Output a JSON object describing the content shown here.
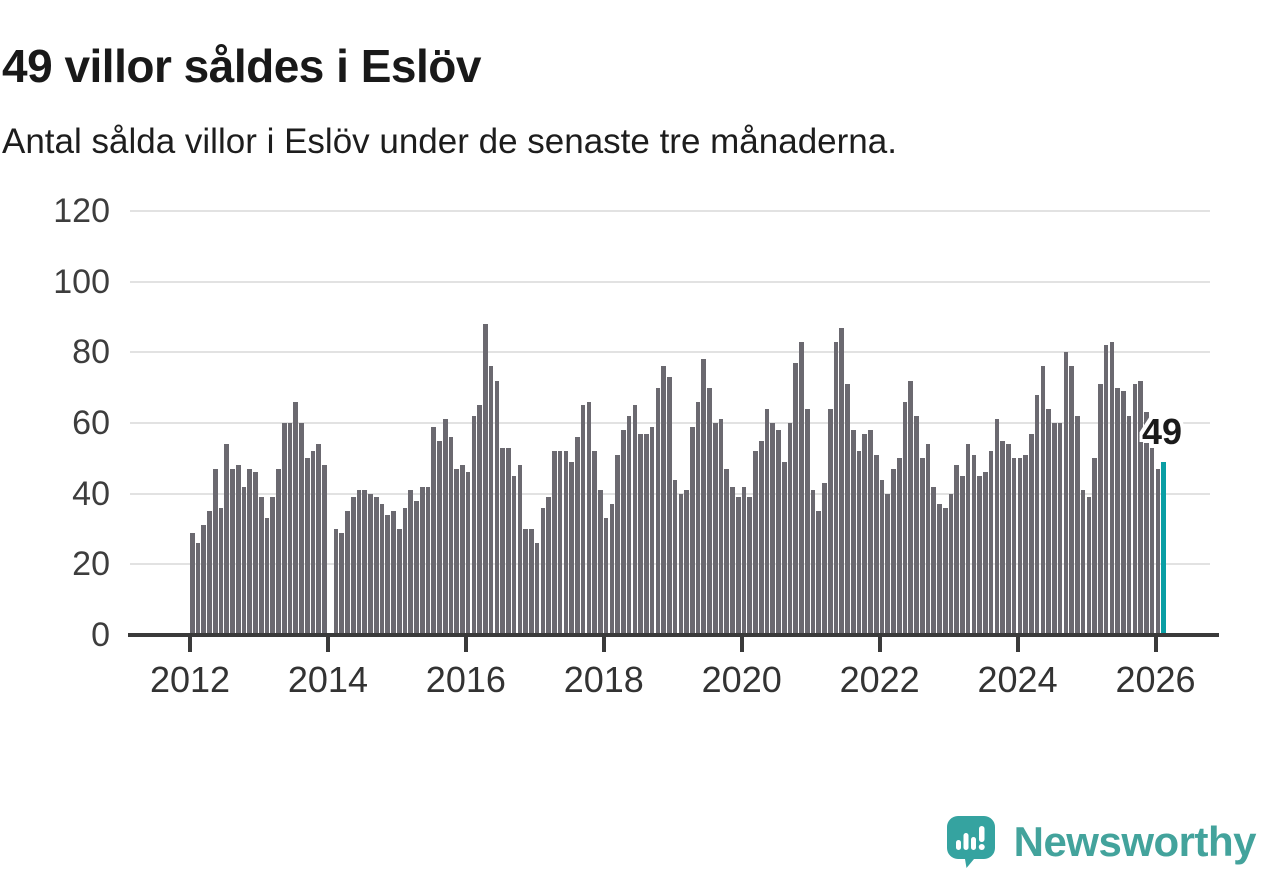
{
  "title": "49 villor såldes i Eslöv",
  "subtitle": "Antal sålda villor i Eslöv under de senaste tre månaderna.",
  "annotation": {
    "label": "49"
  },
  "branding": {
    "wordmark": "Newsworthy"
  },
  "colors": {
    "bar": "#6b6970",
    "highlight": "#0a9ea4",
    "grid": "#e2e2e2",
    "axis": "#3a3a3a",
    "text": "#191919",
    "brand_teal": "#43a39c"
  },
  "chart_data": {
    "type": "bar",
    "title": "49 villor såldes i Eslöv",
    "subtitle": "Antal sålda villor i Eslöv under de senaste tre månaderna.",
    "xlabel": "",
    "ylabel": "",
    "frequency": "monthly",
    "x_start": "2012-01",
    "x_end": "2026-02",
    "x_tick_labels": [
      "2012",
      "2014",
      "2016",
      "2018",
      "2020",
      "2022",
      "2024",
      "2026"
    ],
    "x_tick_month_interval": 24,
    "y_ticks": [
      0,
      20,
      40,
      60,
      80,
      100,
      120
    ],
    "ylim": [
      0,
      120
    ],
    "grid": "horizontal",
    "legend": null,
    "highlight_index": 169,
    "highlight_label": "49",
    "values": [
      29,
      26,
      31,
      35,
      47,
      36,
      54,
      47,
      48,
      42,
      47,
      46,
      39,
      33,
      39,
      47,
      60,
      60,
      66,
      60,
      50,
      52,
      54,
      48,
      null,
      30,
      29,
      35,
      39,
      41,
      41,
      40,
      39,
      37,
      34,
      35,
      30,
      36,
      41,
      38,
      42,
      42,
      59,
      55,
      61,
      56,
      47,
      48,
      46,
      62,
      65,
      88,
      76,
      72,
      53,
      53,
      45,
      48,
      30,
      30,
      26,
      36,
      39,
      52,
      52,
      52,
      49,
      56,
      65,
      66,
      52,
      41,
      33,
      37,
      51,
      58,
      62,
      65,
      57,
      57,
      59,
      70,
      76,
      73,
      44,
      40,
      41,
      59,
      66,
      78,
      70,
      60,
      61,
      47,
      42,
      39,
      42,
      39,
      52,
      55,
      64,
      60,
      58,
      49,
      60,
      77,
      83,
      64,
      41,
      35,
      43,
      64,
      83,
      87,
      71,
      58,
      52,
      57,
      58,
      51,
      44,
      40,
      47,
      50,
      66,
      72,
      62,
      50,
      54,
      42,
      37,
      36,
      40,
      48,
      45,
      54,
      51,
      45,
      46,
      52,
      61,
      55,
      54,
      50,
      50,
      51,
      57,
      68,
      76,
      64,
      60,
      60,
      80,
      76,
      62,
      41,
      39,
      50,
      71,
      82,
      83,
      70,
      69,
      62,
      71,
      72,
      63,
      53,
      47,
      49
    ]
  }
}
